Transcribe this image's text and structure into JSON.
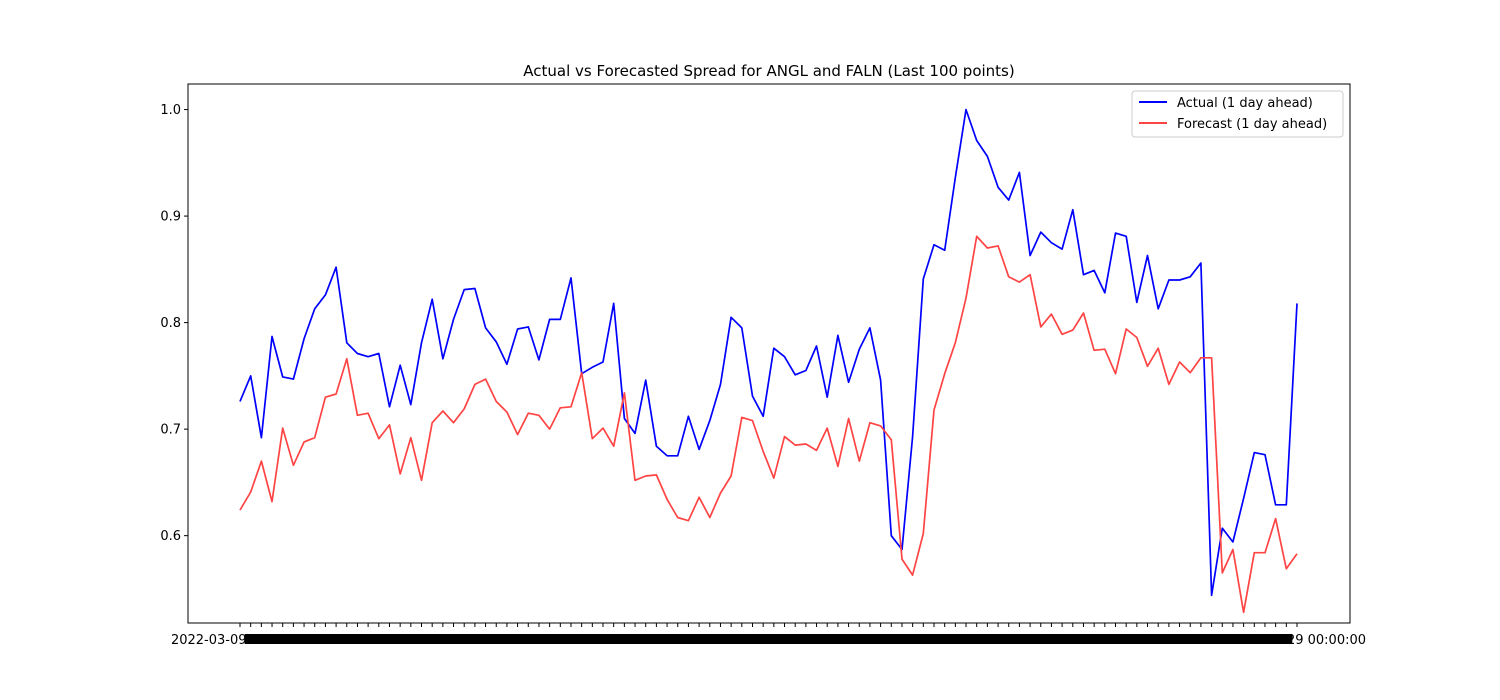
{
  "chart_data": {
    "type": "line",
    "title": "Actual vs Forecasted Spread for ANGL and FALN (Last 100 points)",
    "xlabel": "",
    "ylabel": "",
    "ylim": [
      0.518,
      1.024
    ],
    "y_ticks": [
      "0.6",
      "0.7",
      "0.8",
      "0.9",
      "1.0"
    ],
    "y_tick_values": [
      0.6,
      0.7,
      0.8,
      0.9,
      1.0
    ],
    "x_tick_label_first": "2022-03-09 00:00:00",
    "x_tick_label_last": "2022-07-29 00:00:00",
    "legend_position": "top-right",
    "grid": false,
    "series": [
      {
        "name": "Actual (1 day ahead)",
        "color": "#0000ff",
        "values": [
          0.726,
          0.75,
          0.692,
          0.787,
          0.749,
          0.747,
          0.785,
          0.813,
          0.826,
          0.852,
          0.781,
          0.771,
          0.768,
          0.771,
          0.721,
          0.76,
          0.723,
          0.781,
          0.822,
          0.766,
          0.803,
          0.831,
          0.832,
          0.795,
          0.782,
          0.761,
          0.794,
          0.796,
          0.765,
          0.803,
          0.803,
          0.842,
          0.752,
          0.758,
          0.763,
          0.818,
          0.71,
          0.696,
          0.746,
          0.684,
          0.675,
          0.675,
          0.712,
          0.681,
          0.708,
          0.742,
          0.805,
          0.795,
          0.731,
          0.712,
          0.776,
          0.768,
          0.751,
          0.755,
          0.778,
          0.73,
          0.788,
          0.744,
          0.775,
          0.795,
          0.746,
          0.6,
          0.587,
          0.693,
          0.841,
          0.873,
          0.868,
          0.936,
          1.0,
          0.971,
          0.956,
          0.927,
          0.915,
          0.941,
          0.863,
          0.885,
          0.875,
          0.869,
          0.906,
          0.845,
          0.849,
          0.828,
          0.884,
          0.881,
          0.819,
          0.863,
          0.813,
          0.84,
          0.84,
          0.843,
          0.856,
          0.544,
          0.607,
          0.594,
          0.635,
          0.678,
          0.676,
          0.629,
          0.629,
          0.818
        ]
      },
      {
        "name": "Forecast (1 day ahead)",
        "color": "#ff4444",
        "values": [
          0.624,
          0.641,
          0.67,
          0.632,
          0.701,
          0.666,
          0.688,
          0.692,
          0.73,
          0.733,
          0.766,
          0.713,
          0.715,
          0.691,
          0.704,
          0.658,
          0.692,
          0.652,
          0.706,
          0.717,
          0.706,
          0.719,
          0.742,
          0.747,
          0.726,
          0.716,
          0.695,
          0.715,
          0.713,
          0.7,
          0.72,
          0.721,
          0.753,
          0.691,
          0.701,
          0.684,
          0.734,
          0.652,
          0.656,
          0.657,
          0.634,
          0.617,
          0.614,
          0.636,
          0.617,
          0.64,
          0.656,
          0.711,
          0.708,
          0.679,
          0.654,
          0.693,
          0.685,
          0.686,
          0.68,
          0.701,
          0.665,
          0.71,
          0.67,
          0.706,
          0.703,
          0.69,
          0.578,
          0.563,
          0.602,
          0.718,
          0.752,
          0.781,
          0.823,
          0.881,
          0.87,
          0.872,
          0.843,
          0.838,
          0.845,
          0.796,
          0.808,
          0.789,
          0.793,
          0.809,
          0.774,
          0.775,
          0.752,
          0.794,
          0.786,
          0.759,
          0.776,
          0.742,
          0.763,
          0.753,
          0.767,
          0.767,
          0.565,
          0.587,
          0.528,
          0.584,
          0.584,
          0.616,
          0.569,
          0.583
        ]
      }
    ]
  }
}
